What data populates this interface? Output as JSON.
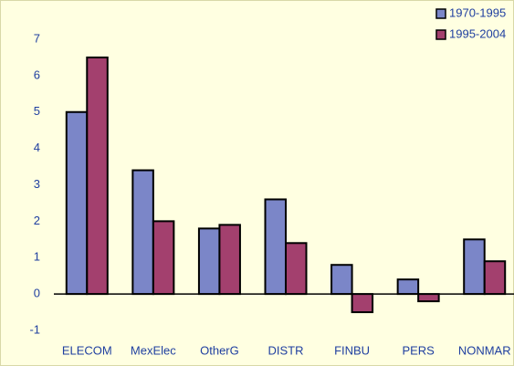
{
  "chart_data": {
    "type": "bar",
    "categories": [
      "ELECOM",
      "MexElec",
      "OtherG",
      "DISTR",
      "FINBU",
      "PERS",
      "NONMAR"
    ],
    "series": [
      {
        "name": "1970-1995",
        "color": "#7b86c8",
        "values": [
          5.0,
          3.4,
          1.8,
          2.6,
          0.8,
          0.4,
          1.5
        ]
      },
      {
        "name": "1995-2004",
        "color": "#a3406e",
        "values": [
          6.5,
          2.0,
          1.9,
          1.4,
          -0.5,
          -0.2,
          0.9
        ]
      }
    ],
    "ylim": [
      -1,
      7
    ],
    "yticks": [
      -1,
      0,
      1,
      2,
      3,
      4,
      5,
      6,
      7
    ],
    "grid": false,
    "legend": "top-right"
  }
}
